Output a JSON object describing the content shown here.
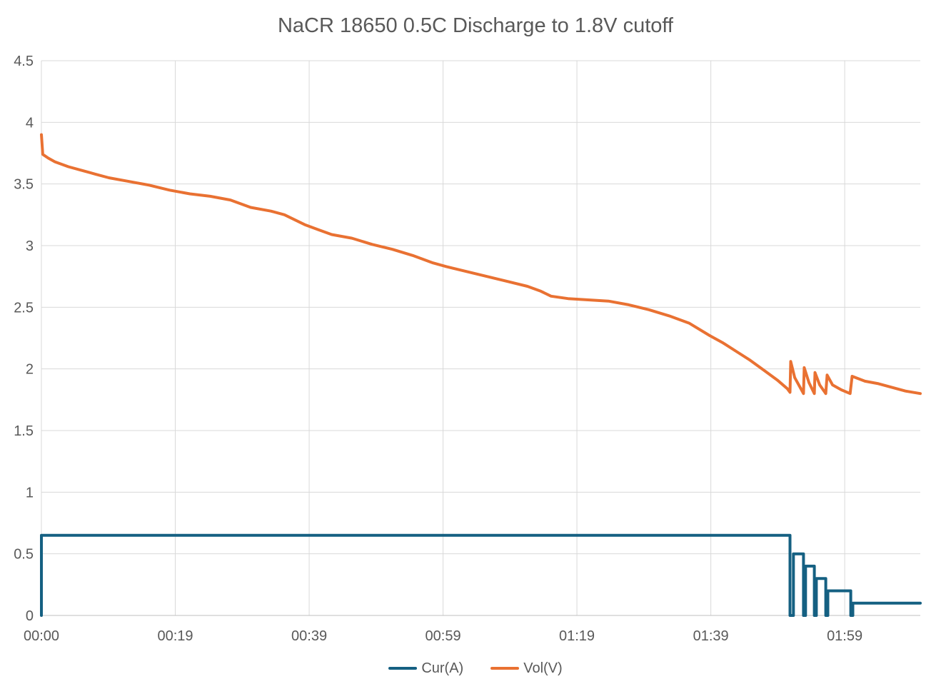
{
  "chart_data": {
    "type": "line",
    "title": "NaCR 18650 0.5C Discharge to 1.8V cutoff",
    "xlabel": "",
    "ylabel": "",
    "xlim": [
      0,
      130.2
    ],
    "ylim": [
      0,
      4.5
    ],
    "grid": true,
    "legend_position": "bottom-center",
    "colors": {
      "grid": "#D9D9D9",
      "axis": "#BFBFBF",
      "text": "#595959",
      "background": "#FFFFFF"
    },
    "x_ticks": [
      {
        "t": 0,
        "label": "00:00"
      },
      {
        "t": 19.83,
        "label": "00:19"
      },
      {
        "t": 39.67,
        "label": "00:39"
      },
      {
        "t": 59.5,
        "label": "00:59"
      },
      {
        "t": 79.33,
        "label": "01:19"
      },
      {
        "t": 99.17,
        "label": "01:39"
      },
      {
        "t": 119.0,
        "label": "01:59"
      }
    ],
    "y_ticks": [
      {
        "v": 0,
        "label": "0"
      },
      {
        "v": 0.5,
        "label": "0.5"
      },
      {
        "v": 1,
        "label": "1"
      },
      {
        "v": 1.5,
        "label": "1.5"
      },
      {
        "v": 2,
        "label": "2"
      },
      {
        "v": 2.5,
        "label": "2.5"
      },
      {
        "v": 3,
        "label": "3"
      },
      {
        "v": 3.5,
        "label": "3.5"
      },
      {
        "v": 4,
        "label": "4"
      },
      {
        "v": 4.5,
        "label": "4.5"
      }
    ],
    "series": [
      {
        "key": "cur",
        "name": "Cur(A)",
        "color": "#156082",
        "points": [
          [
            0,
            0
          ],
          [
            0,
            0.65
          ],
          [
            110.9,
            0.65
          ],
          [
            110.9,
            0
          ],
          [
            111.4,
            0
          ],
          [
            111.4,
            0.5
          ],
          [
            112.9,
            0.5
          ],
          [
            112.9,
            0
          ],
          [
            113.2,
            0
          ],
          [
            113.2,
            0.4
          ],
          [
            114.5,
            0.4
          ],
          [
            114.5,
            0
          ],
          [
            114.8,
            0
          ],
          [
            114.8,
            0.3
          ],
          [
            116.2,
            0.3
          ],
          [
            116.2,
            0
          ],
          [
            116.5,
            0
          ],
          [
            116.5,
            0.2
          ],
          [
            119.9,
            0.2
          ],
          [
            119.9,
            0
          ],
          [
            120.2,
            0
          ],
          [
            120.2,
            0.1
          ],
          [
            130.2,
            0.1
          ]
        ]
      },
      {
        "key": "vol",
        "name": "Vol(V)",
        "color": "#E97132",
        "points": [
          [
            0,
            3.9
          ],
          [
            0.2,
            3.74
          ],
          [
            1,
            3.71
          ],
          [
            2,
            3.68
          ],
          [
            4,
            3.64
          ],
          [
            6,
            3.61
          ],
          [
            8,
            3.58
          ],
          [
            10,
            3.55
          ],
          [
            13,
            3.52
          ],
          [
            16,
            3.49
          ],
          [
            19,
            3.45
          ],
          [
            22,
            3.42
          ],
          [
            25,
            3.4
          ],
          [
            28,
            3.37
          ],
          [
            31,
            3.31
          ],
          [
            34,
            3.28
          ],
          [
            36,
            3.25
          ],
          [
            39,
            3.17
          ],
          [
            41,
            3.13
          ],
          [
            43,
            3.09
          ],
          [
            46,
            3.06
          ],
          [
            49,
            3.01
          ],
          [
            52,
            2.97
          ],
          [
            55,
            2.92
          ],
          [
            58,
            2.86
          ],
          [
            60,
            2.83
          ],
          [
            63,
            2.79
          ],
          [
            66,
            2.75
          ],
          [
            69,
            2.71
          ],
          [
            72,
            2.67
          ],
          [
            74,
            2.63
          ],
          [
            75.5,
            2.59
          ],
          [
            78,
            2.57
          ],
          [
            81,
            2.56
          ],
          [
            84,
            2.55
          ],
          [
            87,
            2.52
          ],
          [
            90,
            2.48
          ],
          [
            93,
            2.43
          ],
          [
            96,
            2.37
          ],
          [
            99,
            2.27
          ],
          [
            101,
            2.21
          ],
          [
            103,
            2.14
          ],
          [
            105,
            2.07
          ],
          [
            107,
            1.99
          ],
          [
            109,
            1.91
          ],
          [
            110.5,
            1.84
          ],
          [
            110.9,
            1.81
          ],
          [
            111.0,
            2.06
          ],
          [
            111.6,
            1.93
          ],
          [
            112.4,
            1.85
          ],
          [
            112.9,
            1.8
          ],
          [
            113.0,
            2.01
          ],
          [
            113.7,
            1.89
          ],
          [
            114.5,
            1.8
          ],
          [
            114.6,
            1.97
          ],
          [
            115.3,
            1.87
          ],
          [
            116.2,
            1.8
          ],
          [
            116.4,
            1.95
          ],
          [
            117.2,
            1.87
          ],
          [
            118.5,
            1.83
          ],
          [
            119.8,
            1.8
          ],
          [
            120.1,
            1.94
          ],
          [
            122,
            1.9
          ],
          [
            124,
            1.88
          ],
          [
            126,
            1.85
          ],
          [
            128,
            1.82
          ],
          [
            130.2,
            1.8
          ]
        ]
      }
    ]
  }
}
